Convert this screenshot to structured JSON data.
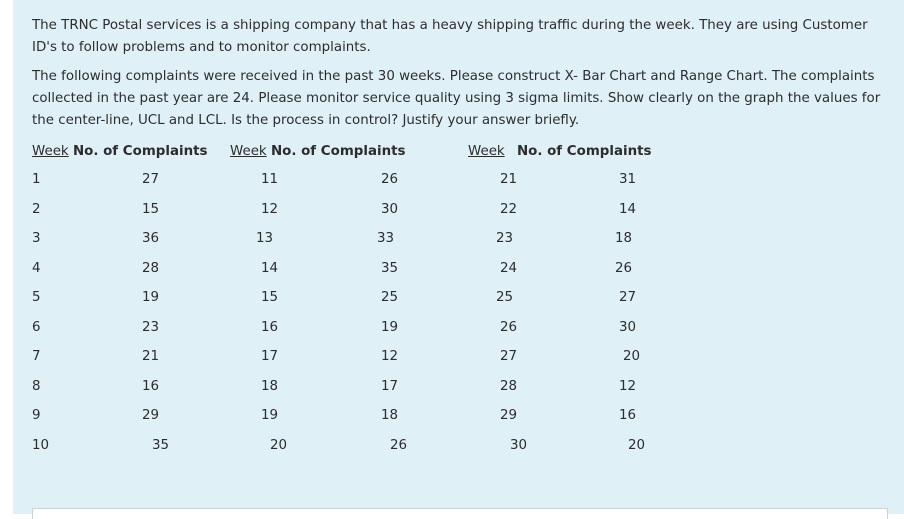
{
  "question": {
    "paragraph1": "The TRNC Postal services is a shipping company that has a heavy shipping traffic during the week. They are using Customer ID's to follow problems and to monitor complaints.",
    "paragraph2": "The following complaints were received in the past 30 weeks. Please construct X- Bar Chart and Range Chart.  The complaints collected in the past year are 24. Please monitor service quality using 3 sigma limits. Show clearly on the graph the values for the center-line, UCL and LCL. Is the process in control? Justify your answer briefly."
  },
  "table": {
    "headers": [
      {
        "week": "Week",
        "complaints": "No. of Complaints"
      },
      {
        "week": "Week",
        "complaints": "No. of Complaints"
      },
      {
        "week": "Week",
        "complaints": "No. of Complaints"
      }
    ],
    "col1": {
      "weeks": [
        "1",
        "2",
        "3",
        "4",
        "5",
        "6",
        "7",
        "8",
        "9",
        "10"
      ],
      "values": [
        "27",
        "15",
        "36",
        "28",
        "19",
        "23",
        "21",
        "16",
        "29",
        "35"
      ]
    },
    "col2": {
      "weeks": [
        "11",
        "12",
        "13",
        "14",
        "15",
        "16",
        "17",
        "18",
        "19",
        "20"
      ],
      "values": [
        "26",
        "30",
        "33",
        "35",
        "25",
        "19",
        "12",
        "17",
        "18",
        "26"
      ]
    },
    "col3": {
      "weeks": [
        "21",
        "22",
        "23",
        "24",
        "25",
        "26",
        "27",
        "28",
        "29",
        "30"
      ],
      "values": [
        "31",
        "14",
        "18",
        "26",
        "27",
        "30",
        "20",
        "12",
        "16",
        "20"
      ]
    }
  }
}
